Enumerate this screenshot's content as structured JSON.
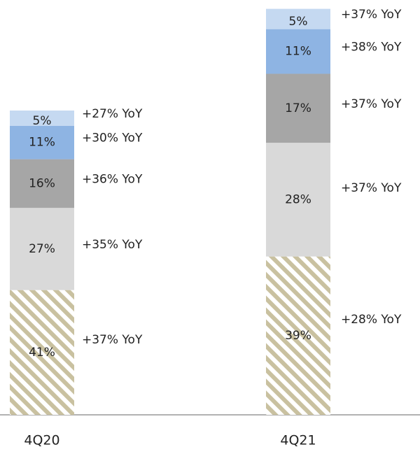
{
  "chart_data": {
    "type": "stacked_bar",
    "categories": [
      "4Q20",
      "4Q21"
    ],
    "series": [
      {
        "color": "#c9c1a0",
        "hatch": true,
        "values": [
          41,
          39
        ],
        "value_labels": [
          "41%",
          "39%"
        ],
        "yoy": [
          37,
          28
        ],
        "yoy_labels": [
          "+37% YoY",
          "+28% YoY"
        ]
      },
      {
        "color": "#d9d9d9",
        "values": [
          27,
          28
        ],
        "value_labels": [
          "27%",
          "28%"
        ],
        "yoy": [
          35,
          37
        ],
        "yoy_labels": [
          "+35% YoY",
          "+37% YoY"
        ]
      },
      {
        "color": "#a6a6a6",
        "values": [
          16,
          17
        ],
        "value_labels": [
          "16%",
          "17%"
        ],
        "yoy": [
          36,
          37
        ],
        "yoy_labels": [
          "+36% YoY",
          "+37% YoY"
        ]
      },
      {
        "color": "#8eb4e3",
        "values": [
          11,
          11
        ],
        "value_labels": [
          "11%",
          "11%"
        ],
        "yoy": [
          30,
          38
        ],
        "yoy_labels": [
          "+30% YoY",
          "+38% YoY"
        ]
      },
      {
        "color": "#c5d9f1",
        "values": [
          5,
          5
        ],
        "value_labels": [
          "5%",
          "5%"
        ],
        "yoy": [
          27,
          37
        ],
        "yoy_labels": [
          "+27% YoY",
          "+37% YoY"
        ]
      }
    ]
  }
}
